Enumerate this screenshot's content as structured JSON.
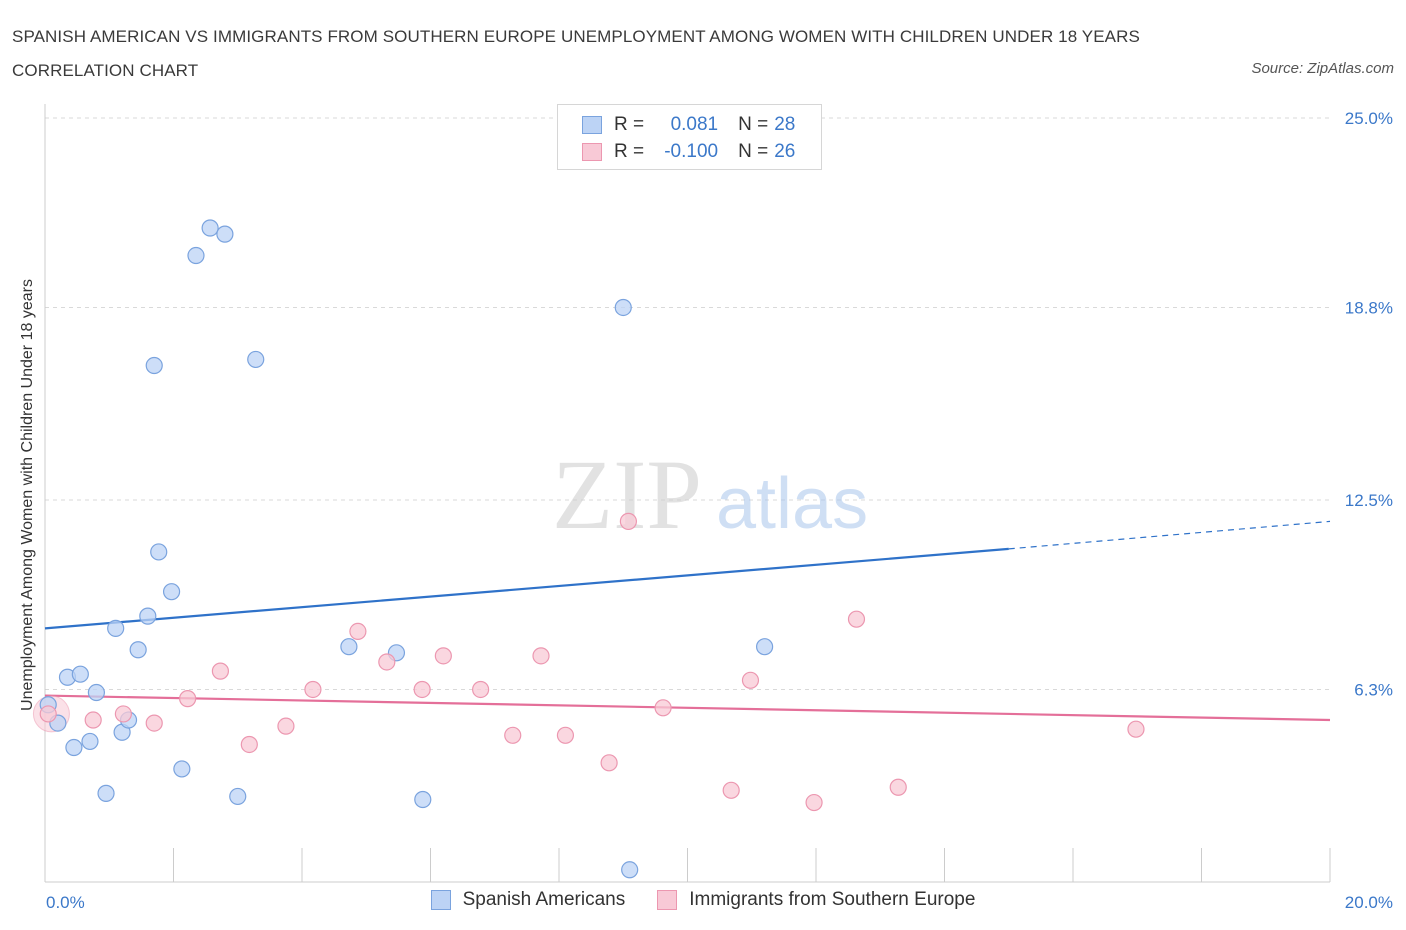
{
  "title": "SPANISH AMERICAN VS IMMIGRANTS FROM SOUTHERN EUROPE UNEMPLOYMENT AMONG WOMEN WITH CHILDREN UNDER 18 YEARS CORRELATION CHART",
  "source": "Source: ZipAtlas.com",
  "watermark": {
    "zip": "ZIP",
    "atlas": "atlas"
  },
  "colors": {
    "blue_fill": "#bcd3f5",
    "blue_stroke": "#7aa3de",
    "blue_line": "#2f72c9",
    "pink_fill": "#f8c9d6",
    "pink_stroke": "#ec97b0",
    "pink_line": "#e46f99",
    "tick_text": "#3b78c9",
    "grid": "#d9d9d9"
  },
  "legend": {
    "rows": [
      {
        "r_label": "R =",
        "r_value": "0.081",
        "n_label": "N =",
        "n_value": "28"
      },
      {
        "r_label": "R =",
        "r_value": "-0.100",
        "n_label": "N =",
        "n_value": "26"
      }
    ]
  },
  "chart_data": {
    "type": "scatter",
    "title": "SPANISH AMERICAN VS IMMIGRANTS FROM SOUTHERN EUROPE UNEMPLOYMENT AMONG WOMEN WITH CHILDREN UNDER 18 YEARS CORRELATION CHART",
    "xlabel": "",
    "ylabel": "Unemployment Among Women with Children Under 18 years",
    "xlim": [
      0,
      20
    ],
    "ylim": [
      0,
      25
    ],
    "x_tick_labels": [
      "0.0%",
      "20.0%"
    ],
    "y_ticks": [
      6.3,
      12.5,
      18.8,
      25.0
    ],
    "y_tick_labels": [
      "6.3%",
      "12.5%",
      "18.8%",
      "25.0%"
    ],
    "grid": true,
    "legend_position": "top-center",
    "series": [
      {
        "name": "Spanish Americans",
        "color": "#bcd3f5",
        "points": [
          [
            0.05,
            5.8
          ],
          [
            0.2,
            5.2
          ],
          [
            0.35,
            6.7
          ],
          [
            0.45,
            4.4
          ],
          [
            0.55,
            6.8
          ],
          [
            0.7,
            4.6
          ],
          [
            0.8,
            6.2
          ],
          [
            0.95,
            2.9
          ],
          [
            1.1,
            8.3
          ],
          [
            1.2,
            4.9
          ],
          [
            1.3,
            5.3
          ],
          [
            1.45,
            7.6
          ],
          [
            1.6,
            8.7
          ],
          [
            1.7,
            16.9
          ],
          [
            1.77,
            10.8
          ],
          [
            1.97,
            9.5
          ],
          [
            2.13,
            3.7
          ],
          [
            2.35,
            20.5
          ],
          [
            2.57,
            21.4
          ],
          [
            2.8,
            21.2
          ],
          [
            3.0,
            2.8
          ],
          [
            3.28,
            17.1
          ],
          [
            4.73,
            7.7
          ],
          [
            5.47,
            7.5
          ],
          [
            5.88,
            2.7
          ],
          [
            9.0,
            18.8
          ],
          [
            9.1,
            0.4
          ],
          [
            11.2,
            7.7
          ]
        ],
        "trend": {
          "x": [
            0,
            15.0,
            20.0
          ],
          "y": [
            8.3,
            10.9,
            11.8
          ],
          "solid_until": 15.0
        }
      },
      {
        "name": "Immigrants from Southern Europe",
        "color": "#f8c9d6",
        "points": [
          [
            0.05,
            5.5
          ],
          [
            0.75,
            5.3
          ],
          [
            1.22,
            5.5
          ],
          [
            1.7,
            5.2
          ],
          [
            2.22,
            6.0
          ],
          [
            2.73,
            6.9
          ],
          [
            3.18,
            4.5
          ],
          [
            3.75,
            5.1
          ],
          [
            4.17,
            6.3
          ],
          [
            4.87,
            8.2
          ],
          [
            5.32,
            7.2
          ],
          [
            5.87,
            6.3
          ],
          [
            6.2,
            7.4
          ],
          [
            6.78,
            6.3
          ],
          [
            7.28,
            4.8
          ],
          [
            7.72,
            7.4
          ],
          [
            8.1,
            4.8
          ],
          [
            8.78,
            3.9
          ],
          [
            9.08,
            11.8
          ],
          [
            9.62,
            5.7
          ],
          [
            10.68,
            3.0
          ],
          [
            10.98,
            6.6
          ],
          [
            11.97,
            2.6
          ],
          [
            12.63,
            8.6
          ],
          [
            13.28,
            3.1
          ],
          [
            16.98,
            5.0
          ]
        ],
        "trend": {
          "x": [
            0,
            20.0
          ],
          "y": [
            6.1,
            5.3
          ]
        }
      }
    ]
  }
}
